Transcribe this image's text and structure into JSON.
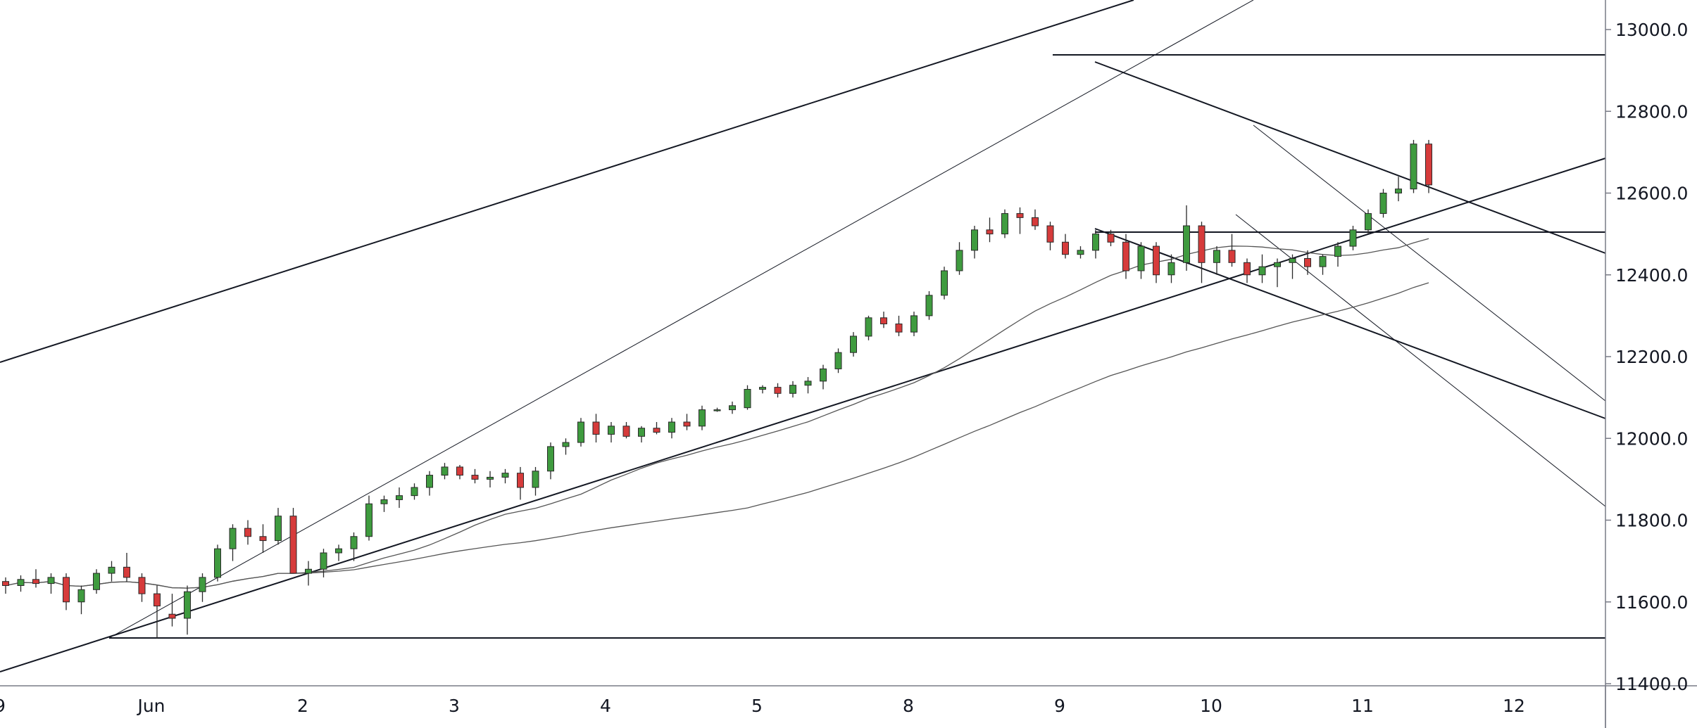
{
  "chart_data": {
    "type": "candlestick",
    "y_axis_position": "right",
    "ylim": [
      11400,
      13050
    ],
    "y_ticks": [
      "11400.0",
      "11600.0",
      "11800.0",
      "12000.0",
      "12200.0",
      "12400.0",
      "12600.0",
      "12800.0",
      "13000.0"
    ],
    "x_ticks": [
      {
        "label": "9",
        "index": 0
      },
      {
        "label": "Jun",
        "index": 10
      },
      {
        "label": "2",
        "index": 20
      },
      {
        "label": "3",
        "index": 30
      },
      {
        "label": "4",
        "index": 40
      },
      {
        "label": "5",
        "index": 50
      },
      {
        "label": "8",
        "index": 60
      },
      {
        "label": "9",
        "index": 70
      },
      {
        "label": "10",
        "index": 80
      },
      {
        "label": "11",
        "index": 90
      },
      {
        "label": "12",
        "index": 100
      }
    ],
    "grid": false,
    "colors": {
      "up": "#3f9b3f",
      "down": "#d63b3b",
      "wick": "#2a2a2a",
      "line": "#131722",
      "ma": "#555555"
    },
    "candles_ohlc": [
      [
        11650,
        11660,
        11620,
        11640
      ],
      [
        11640,
        11665,
        11625,
        11655
      ],
      [
        11655,
        11680,
        11635,
        11645
      ],
      [
        11645,
        11670,
        11620,
        11660
      ],
      [
        11660,
        11670,
        11580,
        11600
      ],
      [
        11600,
        11640,
        11570,
        11630
      ],
      [
        11630,
        11680,
        11620,
        11670
      ],
      [
        11670,
        11700,
        11650,
        11685
      ],
      [
        11685,
        11720,
        11650,
        11660
      ],
      [
        11660,
        11670,
        11600,
        11620
      ],
      [
        11620,
        11640,
        11510,
        11590
      ],
      [
        11570,
        11620,
        11540,
        11560
      ],
      [
        11560,
        11640,
        11520,
        11625
      ],
      [
        11625,
        11670,
        11600,
        11660
      ],
      [
        11660,
        11740,
        11650,
        11730
      ],
      [
        11730,
        11790,
        11700,
        11780
      ],
      [
        11780,
        11800,
        11740,
        11760
      ],
      [
        11760,
        11790,
        11720,
        11750
      ],
      [
        11750,
        11830,
        11740,
        11810
      ],
      [
        11810,
        11830,
        11670,
        11670
      ],
      [
        11670,
        11700,
        11640,
        11680
      ],
      [
        11680,
        11730,
        11660,
        11720
      ],
      [
        11720,
        11740,
        11700,
        11730
      ],
      [
        11730,
        11770,
        11700,
        11760
      ],
      [
        11760,
        11860,
        11750,
        11840
      ],
      [
        11840,
        11860,
        11820,
        11850
      ],
      [
        11850,
        11880,
        11830,
        11860
      ],
      [
        11860,
        11890,
        11850,
        11880
      ],
      [
        11880,
        11920,
        11860,
        11910
      ],
      [
        11910,
        11940,
        11900,
        11930
      ],
      [
        11930,
        11935,
        11900,
        11910
      ],
      [
        11910,
        11925,
        11890,
        11900
      ],
      [
        11900,
        11920,
        11880,
        11905
      ],
      [
        11905,
        11925,
        11890,
        11915
      ],
      [
        11915,
        11930,
        11850,
        11880
      ],
      [
        11880,
        11930,
        11860,
        11920
      ],
      [
        11920,
        11990,
        11900,
        11980
      ],
      [
        11980,
        12000,
        11960,
        11990
      ],
      [
        11990,
        12050,
        11980,
        12040
      ],
      [
        12040,
        12060,
        11990,
        12010
      ],
      [
        12010,
        12040,
        11990,
        12030
      ],
      [
        12030,
        12040,
        12000,
        12005
      ],
      [
        12005,
        12030,
        11990,
        12025
      ],
      [
        12025,
        12040,
        12010,
        12015
      ],
      [
        12015,
        12050,
        12000,
        12040
      ],
      [
        12040,
        12060,
        12020,
        12030
      ],
      [
        12030,
        12080,
        12020,
        12070
      ],
      [
        12070,
        12075,
        12065,
        12070
      ],
      [
        12070,
        12090,
        12060,
        12080
      ],
      [
        12075,
        12130,
        12070,
        12120
      ],
      [
        12120,
        12130,
        12110,
        12125
      ],
      [
        12125,
        12135,
        12100,
        12110
      ],
      [
        12110,
        12140,
        12100,
        12130
      ],
      [
        12130,
        12150,
        12110,
        12140
      ],
      [
        12140,
        12180,
        12120,
        12170
      ],
      [
        12170,
        12220,
        12160,
        12210
      ],
      [
        12210,
        12260,
        12200,
        12250
      ],
      [
        12250,
        12300,
        12240,
        12295
      ],
      [
        12295,
        12310,
        12270,
        12280
      ],
      [
        12280,
        12300,
        12250,
        12260
      ],
      [
        12260,
        12310,
        12250,
        12300
      ],
      [
        12300,
        12360,
        12290,
        12350
      ],
      [
        12350,
        12420,
        12340,
        12410
      ],
      [
        12410,
        12480,
        12400,
        12460
      ],
      [
        12460,
        12520,
        12440,
        12510
      ],
      [
        12510,
        12540,
        12480,
        12500
      ],
      [
        12500,
        12560,
        12490,
        12550
      ],
      [
        12550,
        12565,
        12500,
        12540
      ],
      [
        12540,
        12560,
        12510,
        12520
      ],
      [
        12520,
        12530,
        12460,
        12480
      ],
      [
        12480,
        12500,
        12440,
        12450
      ],
      [
        12450,
        12470,
        12440,
        12460
      ],
      [
        12460,
        12510,
        12440,
        12500
      ],
      [
        12500,
        12510,
        12470,
        12480
      ],
      [
        12480,
        12500,
        12390,
        12410
      ],
      [
        12410,
        12480,
        12390,
        12470
      ],
      [
        12470,
        12480,
        12380,
        12400
      ],
      [
        12400,
        12450,
        12380,
        12430
      ],
      [
        12430,
        12570,
        12410,
        12520
      ],
      [
        12520,
        12530,
        12380,
        12430
      ],
      [
        12430,
        12470,
        12400,
        12460
      ],
      [
        12460,
        12500,
        12420,
        12430
      ],
      [
        12430,
        12440,
        12380,
        12400
      ],
      [
        12400,
        12450,
        12380,
        12420
      ],
      [
        12420,
        12440,
        12370,
        12430
      ],
      [
        12430,
        12450,
        12390,
        12440
      ],
      [
        12440,
        12460,
        12400,
        12420
      ],
      [
        12420,
        12450,
        12400,
        12445
      ],
      [
        12445,
        12480,
        12420,
        12470
      ],
      [
        12470,
        12520,
        12460,
        12510
      ],
      [
        12510,
        12560,
        12500,
        12550
      ],
      [
        12550,
        12610,
        12540,
        12600
      ],
      [
        12600,
        12640,
        12580,
        12610
      ],
      [
        12610,
        12730,
        12600,
        12720
      ],
      [
        12720,
        12730,
        12600,
        12620
      ]
    ],
    "moving_averages": "two simple moving averages drawn as thin grey lines",
    "trendlines": "hand-drawn channel lines, horizontal support/resistance levels and descending channel in black"
  }
}
